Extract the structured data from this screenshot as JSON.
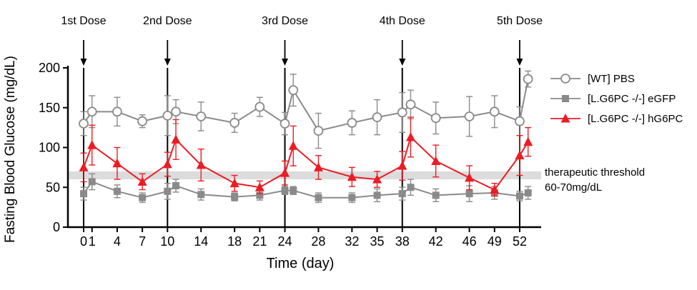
{
  "window": {
    "background": "#ffffff"
  },
  "chart_data": {
    "type": "line",
    "title": "",
    "xlabel": "Time (day)",
    "ylabel": "Fasting Blood Glucose (mg/dL)",
    "ylim": [
      0,
      200
    ],
    "yticks": [
      0,
      50,
      100,
      150,
      200
    ],
    "xticks": [
      0,
      1,
      4,
      7,
      10,
      14,
      18,
      21,
      24,
      28,
      32,
      35,
      38,
      42,
      46,
      49,
      52
    ],
    "x_days": [
      0,
      1,
      4,
      7,
      10,
      11,
      14,
      18,
      21,
      24,
      25,
      28,
      32,
      35,
      38,
      39,
      42,
      46,
      49,
      52,
      53
    ],
    "series": [
      {
        "name": "[WT] PBS",
        "color": "#8a8a8a",
        "marker": "open-circle",
        "values": [
          130,
          145,
          145,
          133,
          140,
          145,
          139,
          131,
          151,
          130,
          172,
          121,
          131,
          138,
          144,
          154,
          137,
          139,
          145,
          133,
          186
        ],
        "errors": [
          15,
          20,
          18,
          8,
          25,
          15,
          18,
          12,
          12,
          14,
          20,
          22,
          15,
          22,
          25,
          18,
          20,
          25,
          20,
          18,
          10
        ]
      },
      {
        "name": "[L.G6PC -/-] eGFP",
        "color": "#8a8a8a",
        "marker": "filled-square",
        "values": [
          42,
          57,
          45,
          37,
          45,
          52,
          41,
          38,
          40,
          46,
          46,
          37,
          37,
          40,
          42,
          50,
          40,
          42,
          43,
          39,
          43
        ],
        "errors": [
          8,
          10,
          8,
          6,
          10,
          8,
          7,
          5,
          6,
          5,
          5,
          6,
          6,
          8,
          8,
          10,
          8,
          10,
          8,
          6,
          8
        ]
      },
      {
        "name": "[L.G6PC -/-] hG6PC",
        "color": "#ed1c24",
        "marker": "filled-triangle",
        "values": [
          75,
          103,
          80,
          57,
          79,
          110,
          78,
          55,
          50,
          68,
          102,
          75,
          63,
          60,
          77,
          113,
          83,
          62,
          47,
          90,
          107
        ],
        "errors": [
          18,
          25,
          20,
          10,
          15,
          25,
          20,
          10,
          8,
          15,
          25,
          15,
          12,
          10,
          18,
          25,
          20,
          15,
          8,
          25,
          18
        ]
      }
    ],
    "doses": [
      {
        "label": "1st Dose",
        "day": 0
      },
      {
        "label": "2nd Dose",
        "day": 10
      },
      {
        "label": "3rd Dose",
        "day": 24
      },
      {
        "label": "4th Dose",
        "day": 38
      },
      {
        "label": "5th Dose",
        "day": 52
      }
    ],
    "threshold": {
      "low": 60,
      "high": 70,
      "color": "#d8d8d8",
      "label_line1": "therapeutic threshold",
      "label_line2": "60-70mg/dL"
    },
    "grid": false,
    "legend_position": "right"
  }
}
